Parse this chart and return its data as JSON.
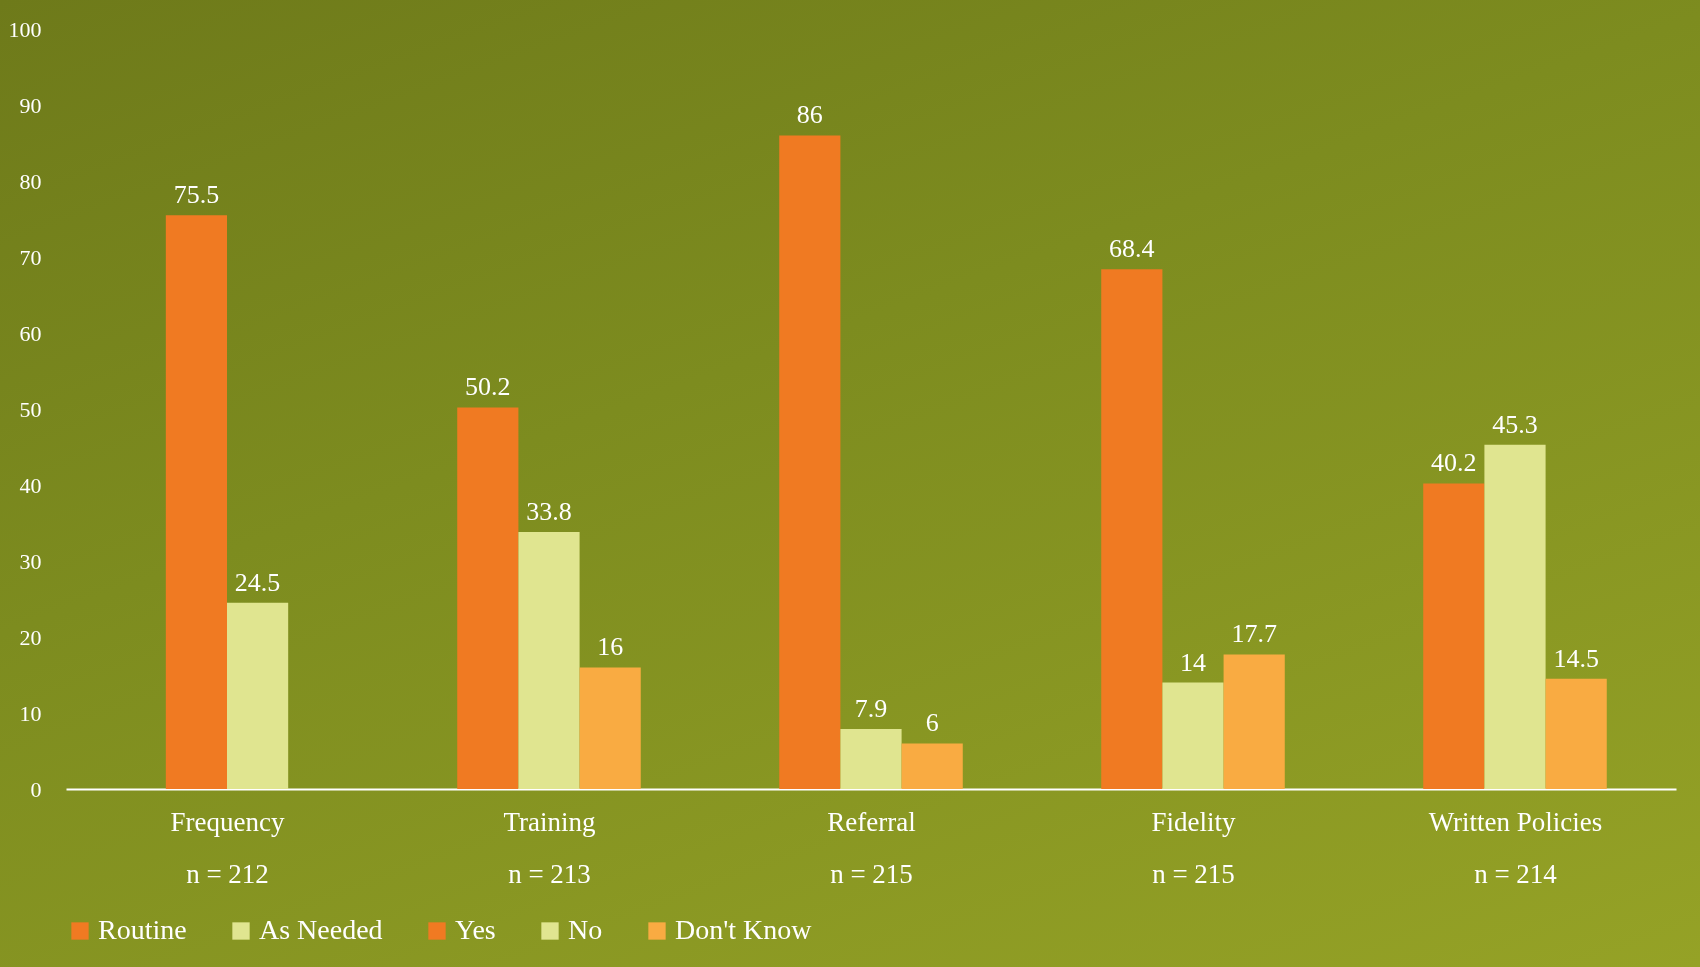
{
  "chart_data": {
    "type": "bar",
    "categories": [
      "Frequency\nn = 212",
      "Training\nn = 213",
      "Referral\nn = 215",
      "Fidelity\nn = 215",
      "Written Policies\nn = 214"
    ],
    "series": [
      {
        "name": "Routine",
        "color": "#f07a22",
        "values": [
          75.5,
          null,
          null,
          null,
          null
        ]
      },
      {
        "name": "As Needed",
        "color": "#e0e590",
        "values": [
          24.5,
          null,
          null,
          null,
          null
        ]
      },
      {
        "name": "Yes",
        "color": "#f07a22",
        "values": [
          null,
          50.2,
          86,
          68.4,
          40.2
        ]
      },
      {
        "name": "No",
        "color": "#e0e590",
        "values": [
          null,
          33.8,
          7.9,
          14,
          45.3
        ]
      },
      {
        "name": "Don't Know",
        "color": "#f9ab42",
        "values": [
          null,
          16,
          6,
          17.7,
          14.5
        ]
      }
    ],
    "ylim": [
      0,
      100
    ],
    "yticks": [
      0,
      10,
      20,
      30,
      40,
      50,
      60,
      70,
      80,
      90,
      100
    ],
    "data_labels": true,
    "legend": "bottom"
  }
}
